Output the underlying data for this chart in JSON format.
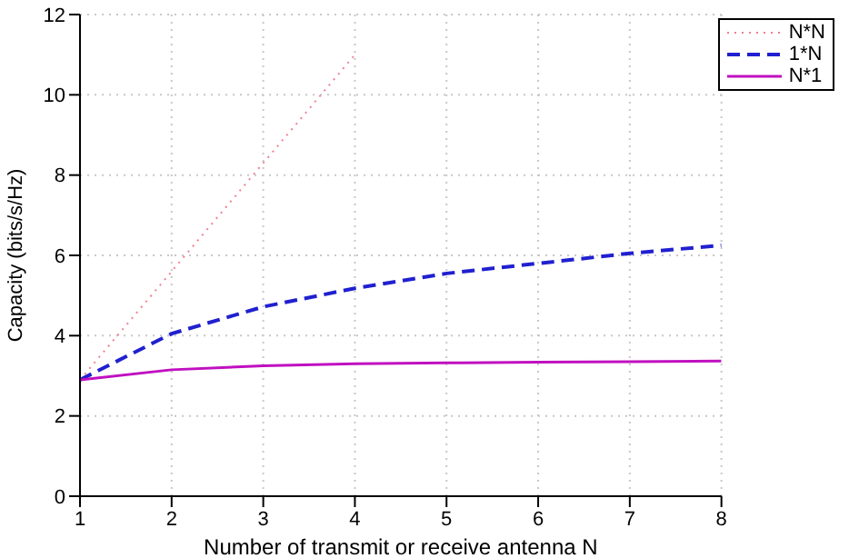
{
  "chart_data": {
    "type": "line",
    "xlabel": "Number of transmit or receive antenna N",
    "ylabel": "Capacity (bits/s/Hz)",
    "x": [
      1,
      2,
      3,
      4,
      5,
      6,
      7,
      8
    ],
    "series": [
      {
        "name": "N*N",
        "color": "#f08090",
        "line_style": "dotted",
        "values": [
          2.9,
          5.6,
          8.3,
          11.0,
          null,
          null,
          null,
          null
        ]
      },
      {
        "name": "1*N",
        "color": "#2020d0",
        "line_style": "dashed",
        "values": [
          2.9,
          4.05,
          4.72,
          5.18,
          5.55,
          5.8,
          6.05,
          6.25
        ]
      },
      {
        "name": "N*1",
        "color": "#c010c0",
        "line_style": "solid",
        "values": [
          2.9,
          3.15,
          3.25,
          3.3,
          3.32,
          3.34,
          3.35,
          3.37
        ]
      }
    ],
    "xlim": [
      1,
      8
    ],
    "xticks": [
      1,
      2,
      3,
      4,
      5,
      6,
      7,
      8
    ],
    "ylim": [
      0,
      12
    ],
    "yticks": [
      0,
      2,
      4,
      6,
      8,
      10,
      12
    ],
    "grid": true,
    "legend": "top right",
    "marker": "none"
  }
}
